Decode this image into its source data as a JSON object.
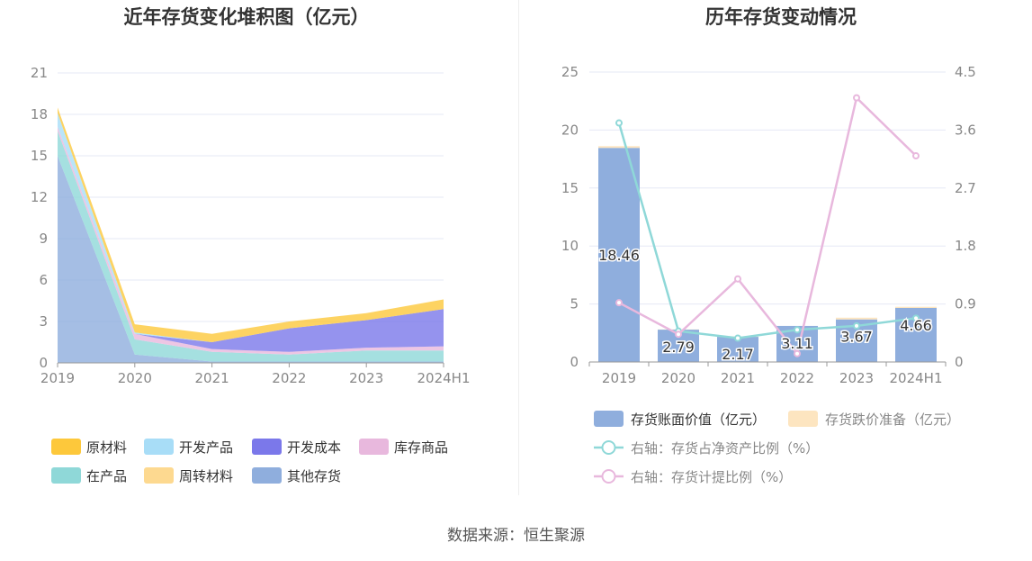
{
  "source_text": "数据来源：恒生聚源",
  "colors": {
    "raw_material": "#fdc83b",
    "dev_product": "#a8ddf7",
    "dev_cost": "#7b78ea",
    "stock_goods": "#e8b8dd",
    "wip": "#8fd8d8",
    "turnover": "#fdd990",
    "other": "#8faedd",
    "book_bar": "#8faedd",
    "reserve_bar": "#fde5c0",
    "ratio_line": "#8fd8d8",
    "provision_line": "#e8b8dd",
    "grid": "#e6e8f5",
    "axis_text": "#888888"
  },
  "chart_data": [
    {
      "type": "area",
      "title": "近年存货变化堆积图（亿元）",
      "categories": [
        "2019",
        "2020",
        "2021",
        "2022",
        "2023",
        "2024H1"
      ],
      "ylim": [
        0,
        21
      ],
      "yticks": [
        "0",
        "3",
        "6",
        "9",
        "12",
        "15",
        "18",
        "21"
      ],
      "grid": true,
      "legend_position": "bottom",
      "series": [
        {
          "name": "原材料",
          "color_key": "raw_material",
          "values": [
            0.4,
            0.6,
            0.6,
            0.5,
            0.5,
            0.7
          ]
        },
        {
          "name": "开发产品",
          "color_key": "dev_product",
          "values": [
            1.0,
            0.1,
            0.0,
            0.0,
            0.0,
            0.0
          ]
        },
        {
          "name": "开发成本",
          "color_key": "dev_cost",
          "values": [
            0.0,
            0.0,
            0.5,
            1.7,
            2.0,
            2.7
          ]
        },
        {
          "name": "库存商品",
          "color_key": "stock_goods",
          "values": [
            0.3,
            0.4,
            0.2,
            0.2,
            0.2,
            0.3
          ]
        },
        {
          "name": "在产品",
          "color_key": "wip",
          "values": [
            1.8,
            1.1,
            0.7,
            0.5,
            0.8,
            0.8
          ]
        },
        {
          "name": "周转材料",
          "color_key": "turnover",
          "values": [
            0.0,
            0.0,
            0.0,
            0.0,
            0.0,
            0.0
          ]
        },
        {
          "name": "其他存货",
          "color_key": "other",
          "values": [
            15.0,
            0.6,
            0.1,
            0.1,
            0.1,
            0.1
          ]
        }
      ],
      "legend_order": [
        "原材料",
        "开发产品",
        "开发成本",
        "库存商品",
        "在产品",
        "周转材料",
        "其他存货"
      ]
    },
    {
      "type": "bar",
      "title": "历年存货变动情况",
      "categories": [
        "2019",
        "2020",
        "2021",
        "2022",
        "2023",
        "2024H1"
      ],
      "ylim": [
        0,
        25
      ],
      "yticks": [
        "0",
        "5",
        "10",
        "15",
        "20",
        "25"
      ],
      "y2lim": [
        0,
        4.5
      ],
      "y2ticks": [
        "0",
        "0.9",
        "1.8",
        "2.7",
        "3.6",
        "4.5"
      ],
      "grid": true,
      "legend_position": "bottom",
      "series": [
        {
          "name": "存货账面价值（亿元）",
          "kind": "bar",
          "color_key": "book_bar",
          "values": [
            18.46,
            2.79,
            2.17,
            3.11,
            3.67,
            4.66
          ],
          "labels": [
            "18.46",
            "2.79",
            "2.17",
            "3.11",
            "3.67",
            "4.66"
          ]
        },
        {
          "name": "存货跌价准备（亿元）",
          "kind": "bar",
          "color_key": "reserve_bar",
          "values": [
            0.15,
            0.02,
            0.03,
            0.0,
            0.15,
            0.1
          ]
        },
        {
          "name": "右轴：存货占净资产比例（%）",
          "kind": "line",
          "axis": "right",
          "color_key": "ratio_line",
          "values": [
            3.71,
            0.48,
            0.37,
            0.5,
            0.56,
            0.68
          ]
        },
        {
          "name": "右轴：存货计提比例（%）",
          "kind": "line",
          "axis": "right",
          "color_key": "provision_line",
          "values": [
            0.92,
            0.43,
            1.29,
            0.13,
            4.1,
            3.2
          ]
        }
      ]
    }
  ]
}
